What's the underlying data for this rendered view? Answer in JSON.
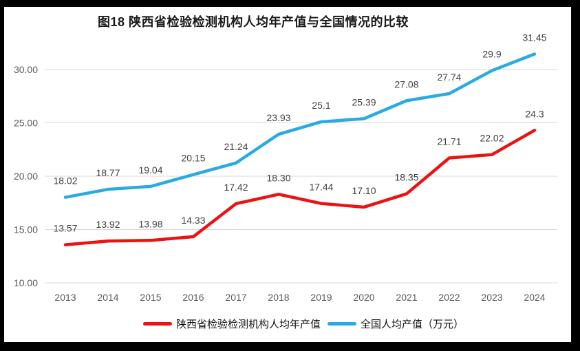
{
  "chart_data": {
    "type": "line",
    "title": "图18 陕西省检验检测机构人均年产值与全国情况的比较",
    "categories": [
      "2013",
      "2014",
      "2015",
      "2016",
      "2017",
      "2018",
      "2019",
      "2020",
      "2021",
      "2022",
      "2023",
      "2024"
    ],
    "series": [
      {
        "name": "陕西省检验检测机构人均年产值",
        "color": "#ee1111",
        "values": [
          13.57,
          13.92,
          13.98,
          14.33,
          17.42,
          18.3,
          17.44,
          17.1,
          18.35,
          21.71,
          22.02,
          24.3
        ],
        "labels": [
          "13.57",
          "13.92",
          "13.98",
          "14.33",
          "17.42",
          "18.30",
          "17.44",
          "17.10",
          "18.35",
          "21.71",
          "22.02",
          "24.3"
        ]
      },
      {
        "name": "全国人均产值（万元）",
        "color": "#29abe2",
        "values": [
          18.02,
          18.77,
          19.04,
          20.15,
          21.24,
          23.93,
          25.1,
          25.39,
          27.08,
          27.74,
          29.9,
          31.45
        ],
        "labels": [
          "18.02",
          "18.77",
          "19.04",
          "20.15",
          "21.24",
          "23.93",
          "25.1",
          "25.39",
          "27.08",
          "27.74",
          "29.9",
          "31.45"
        ]
      }
    ],
    "y_axis": {
      "ticks": [
        {
          "value": 10,
          "label": "10.00"
        },
        {
          "value": 15,
          "label": "15.00"
        },
        {
          "value": 20,
          "label": "20.00"
        },
        {
          "value": 25,
          "label": "25.00"
        },
        {
          "value": 30,
          "label": "30.00"
        }
      ],
      "range": [
        10,
        32.5
      ]
    },
    "xlabel": "",
    "ylabel": "",
    "grid": true,
    "legend_position": "bottom",
    "styles": {
      "gridline_color": "#d9d9d9",
      "axis_label_color": "#595959",
      "data_label_color": "#404040",
      "line_width": 4.5
    }
  }
}
